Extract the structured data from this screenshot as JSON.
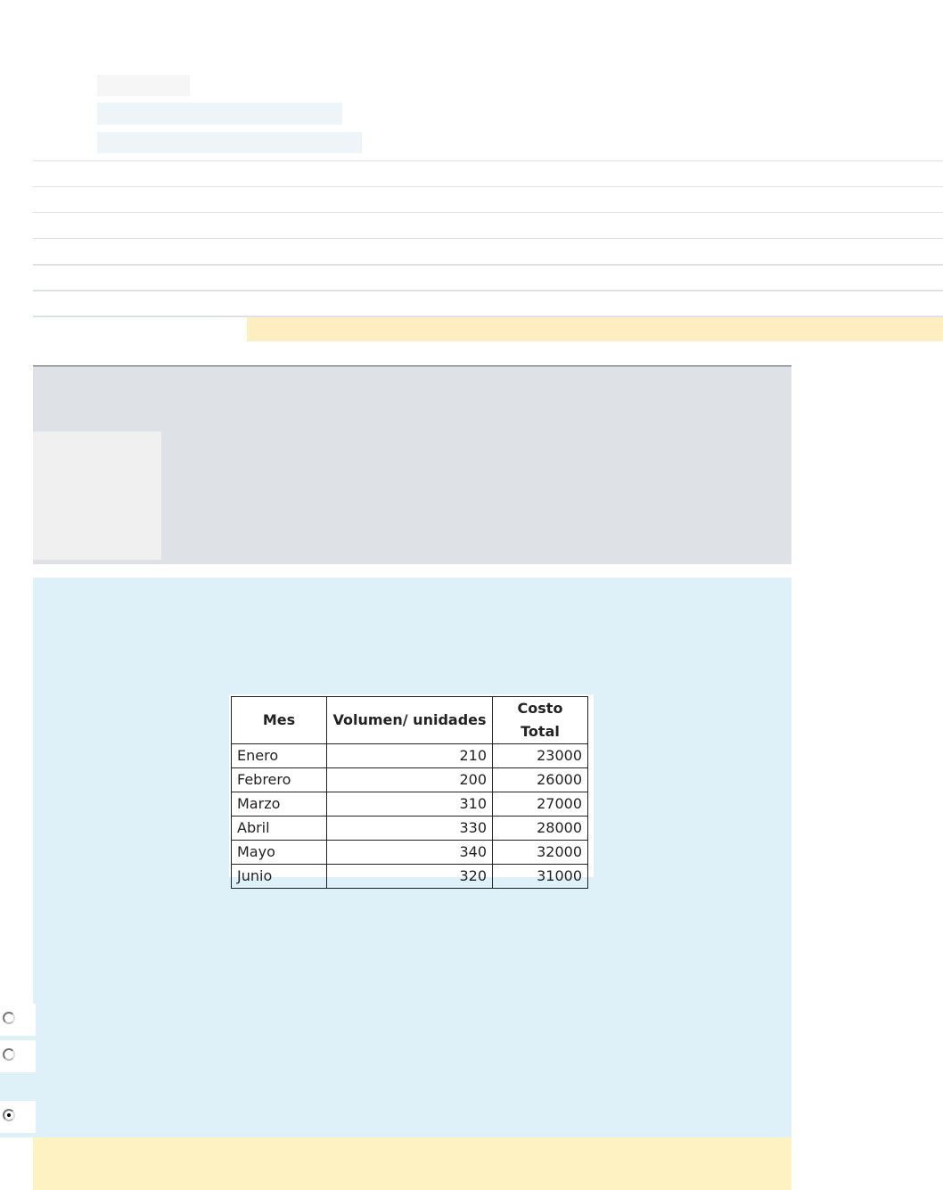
{
  "colors": {
    "highlight": "#ffeec2",
    "question_bg": "#dff1f8",
    "info_bg": "#dee2e6",
    "feedback_bg": "#fef2c2"
  },
  "question_table": {
    "headers": [
      "Mes",
      "Volumen/ unidades",
      "Costo Total"
    ],
    "rows": [
      [
        "Enero",
        "210",
        "23000"
      ],
      [
        "Febrero",
        "200",
        "26000"
      ],
      [
        "Marzo",
        "310",
        "27000"
      ],
      [
        "Abril",
        "330",
        "28000"
      ],
      [
        "Mayo",
        "340",
        "32000"
      ],
      [
        "Junio",
        "320",
        "31000"
      ]
    ]
  },
  "options": [
    {
      "selected": false
    },
    {
      "selected": false
    },
    {
      "selected": true
    }
  ]
}
